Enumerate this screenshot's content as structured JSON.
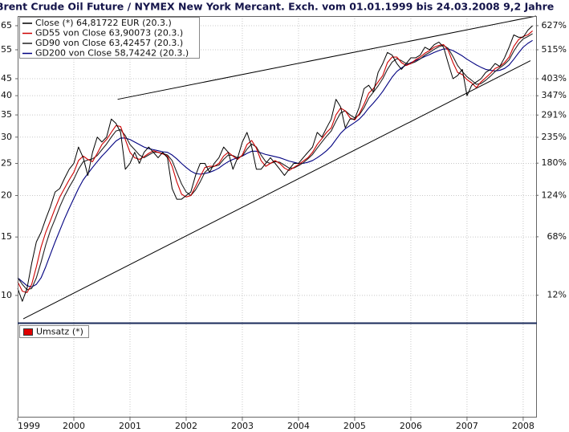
{
  "chart_data": {
    "type": "line",
    "title": "Brent Crude Oil Future / NYMEX New York Mercant. Exch. vom 01.01.1999 bis 24.03.2008 9,2 Jahre",
    "log_scale": true,
    "grid": true,
    "legend": "top-left",
    "xlim": [
      1999,
      2008.23
    ],
    "xticks": [
      1999,
      2000,
      2001,
      2002,
      2003,
      2004,
      2005,
      2006,
      2007,
      2008
    ],
    "ylim": [
      8.27,
      69.5
    ],
    "yticks": [
      65,
      55,
      45,
      40,
      35,
      30,
      25,
      20,
      15,
      10
    ],
    "y2_log": true,
    "y2lim": [
      -7.5,
      677
    ],
    "y2ticks": [
      {
        "value": 627,
        "label": "627%"
      },
      {
        "value": 515,
        "label": "515%"
      },
      {
        "value": 403,
        "label": "403%"
      },
      {
        "value": 347,
        "label": "347%"
      },
      {
        "value": 291,
        "label": "291%"
      },
      {
        "value": 235,
        "label": "235%"
      },
      {
        "value": 180,
        "label": "180%"
      },
      {
        "value": 124,
        "label": "124%"
      },
      {
        "value": 68,
        "label": "68%"
      },
      {
        "value": 12,
        "label": "12%"
      }
    ],
    "x": [
      1999.0,
      1999.083,
      1999.167,
      1999.25,
      1999.333,
      1999.417,
      1999.5,
      1999.583,
      1999.667,
      1999.75,
      1999.833,
      1999.917,
      2000.0,
      2000.083,
      2000.167,
      2000.25,
      2000.333,
      2000.417,
      2000.5,
      2000.583,
      2000.667,
      2000.75,
      2000.833,
      2000.917,
      2001.0,
      2001.083,
      2001.167,
      2001.25,
      2001.333,
      2001.417,
      2001.5,
      2001.583,
      2001.667,
      2001.75,
      2001.833,
      2001.917,
      2002.0,
      2002.083,
      2002.167,
      2002.25,
      2002.333,
      2002.417,
      2002.5,
      2002.583,
      2002.667,
      2002.75,
      2002.833,
      2002.917,
      2003.0,
      2003.083,
      2003.167,
      2003.25,
      2003.333,
      2003.417,
      2003.5,
      2003.583,
      2003.667,
      2003.75,
      2003.833,
      2003.917,
      2004.0,
      2004.083,
      2004.167,
      2004.25,
      2004.333,
      2004.417,
      2004.5,
      2004.583,
      2004.667,
      2004.75,
      2004.833,
      2004.917,
      2005.0,
      2005.083,
      2005.167,
      2005.25,
      2005.333,
      2005.417,
      2005.5,
      2005.583,
      2005.667,
      2005.75,
      2005.833,
      2005.917,
      2006.0,
      2006.083,
      2006.167,
      2006.25,
      2006.333,
      2006.417,
      2006.5,
      2006.583,
      2006.667,
      2006.75,
      2006.833,
      2006.917,
      2007.0,
      2007.083,
      2007.167,
      2007.25,
      2007.333,
      2007.417,
      2007.5,
      2007.583,
      2007.667,
      2007.75,
      2007.833,
      2007.917,
      2008.0,
      2008.083,
      2008.167
    ],
    "series": [
      {
        "name": "Close (*) 64,81722 EUR (20.3.)",
        "color": "#000000",
        "values": [
          10.5,
          9.6,
          10.5,
          12.5,
          14.5,
          15.5,
          17,
          18.5,
          20.5,
          21,
          22.5,
          24,
          25,
          28,
          26,
          23,
          27,
          30,
          29,
          30,
          34,
          33,
          31,
          24,
          25,
          27,
          25,
          27,
          28,
          27,
          26,
          27,
          26,
          21,
          19.5,
          19.5,
          20,
          20.5,
          23,
          25,
          25,
          23.5,
          25,
          26,
          28,
          27,
          24,
          26,
          29,
          31,
          28,
          24,
          24,
          25,
          26,
          25,
          24,
          23,
          24,
          25,
          25,
          26,
          27,
          28,
          31,
          30,
          32,
          34,
          39,
          37,
          32,
          34,
          34,
          37,
          42,
          43,
          41,
          47,
          50,
          54,
          53,
          50,
          48,
          50,
          52,
          52,
          53,
          56,
          55,
          57,
          58,
          56,
          50,
          45,
          46,
          48,
          40,
          43,
          44,
          45,
          47,
          48,
          50,
          49,
          52,
          56,
          61,
          60,
          60,
          63,
          65
        ]
      },
      {
        "name": "GD55 von Close 63,90073 (20.3.)",
        "color": "#cc0000",
        "values": [
          11,
          10.3,
          10.2,
          10.8,
          12.2,
          14,
          15.5,
          16.8,
          18.3,
          19.8,
          21,
          22.3,
          23.5,
          25.5,
          26.3,
          25.7,
          25.3,
          26.8,
          28.5,
          29.5,
          31,
          32.5,
          32.3,
          29.5,
          27,
          26,
          25.7,
          26.2,
          26.8,
          27.3,
          27,
          26.7,
          26.3,
          24.5,
          22,
          20.2,
          19.8,
          20,
          21.3,
          22.8,
          24.3,
          24.5,
          24.5,
          25,
          26.3,
          27,
          26.3,
          25.7,
          26.5,
          28.5,
          29.3,
          27.8,
          25.5,
          24.5,
          25,
          25.5,
          25,
          24.2,
          23.8,
          24.3,
          24.8,
          25.4,
          26,
          27,
          28.5,
          29.7,
          31,
          32,
          35,
          36.7,
          36,
          34.3,
          33.8,
          35.3,
          37.7,
          40.7,
          42,
          44,
          46,
          50.3,
          52.3,
          52.3,
          50.3,
          49.3,
          50,
          51.3,
          52.3,
          53.7,
          54.7,
          56,
          56.7,
          57,
          54.7,
          50.3,
          47,
          46.3,
          44.7,
          43.7,
          42.3,
          44,
          45.3,
          46.7,
          48.3,
          49,
          50.3,
          52.3,
          56.3,
          59,
          60.3,
          61,
          62.7
        ]
      },
      {
        "name": "GD90 von Close 63,42457 (20.3.)",
        "color": "#222222",
        "values": [
          11.3,
          10.8,
          10.4,
          10.5,
          11.3,
          12.6,
          14.2,
          15.7,
          17,
          18.5,
          19.9,
          21.2,
          22.4,
          24,
          25.3,
          25.6,
          25.8,
          26.4,
          27.5,
          28.6,
          30,
          31.3,
          31.6,
          30.3,
          28.5,
          27.5,
          26.5,
          26,
          26.5,
          27,
          27,
          26.8,
          26.5,
          25.5,
          23.5,
          21.7,
          20.5,
          20,
          20.8,
          22,
          23.5,
          24.2,
          24.5,
          24.7,
          25.7,
          26.5,
          26.4,
          26,
          26.3,
          27.6,
          28.6,
          28,
          26.5,
          25.3,
          25,
          25.3,
          25.2,
          24.7,
          24.2,
          24.2,
          24.6,
          25.1,
          25.8,
          26.6,
          27.8,
          29,
          30.2,
          31.3,
          33.5,
          35.5,
          36,
          35,
          34.3,
          35,
          36.8,
          39.3,
          41,
          42.8,
          45,
          48,
          50.5,
          51.7,
          51,
          50,
          50,
          50.6,
          51.6,
          53,
          54,
          55.2,
          56.2,
          56.7,
          55.5,
          52.5,
          49.3,
          47.3,
          45.6,
          44.5,
          43.3,
          43.5,
          44.5,
          45.8,
          47.3,
          48.5,
          49.7,
          51.3,
          54.5,
          57.3,
          59.3,
          60.3,
          61.5
        ]
      },
      {
        "name": "GD200 von Close 58,74242 (20.3.)",
        "color": "#000080",
        "values": [
          11.3,
          11,
          10.7,
          10.6,
          10.8,
          11.3,
          12.2,
          13.3,
          14.5,
          15.7,
          17,
          18.3,
          19.6,
          21,
          22.3,
          23.3,
          24.3,
          25.3,
          26.3,
          27.2,
          28.2,
          29.2,
          29.8,
          29.8,
          29.5,
          29,
          28.5,
          28,
          27.7,
          27.5,
          27.3,
          27.1,
          27,
          26.5,
          25.8,
          25,
          24.3,
          23.7,
          23.3,
          23.2,
          23.3,
          23.5,
          23.8,
          24.2,
          24.8,
          25.3,
          25.7,
          26,
          26.3,
          26.8,
          27.2,
          27.2,
          26.9,
          26.6,
          26.4,
          26.2,
          26,
          25.7,
          25.4,
          25.2,
          25,
          25,
          25.2,
          25.5,
          26,
          26.6,
          27.3,
          28.2,
          29.5,
          30.8,
          31.8,
          32.5,
          33.2,
          34,
          35.2,
          36.7,
          38,
          39.5,
          41.2,
          43.3,
          45.5,
          47.3,
          48.5,
          49.5,
          50.3,
          51,
          51.7,
          52.5,
          53.2,
          54,
          54.7,
          55.3,
          55.3,
          54.7,
          53.7,
          52.7,
          51.5,
          50.5,
          49.5,
          48.7,
          48,
          47.7,
          47.5,
          47.7,
          48.3,
          49.5,
          51.5,
          53.8,
          56,
          57.5,
          58.7
        ]
      }
    ],
    "trend_lines": [
      {
        "color": "#000000",
        "x": [
          2000.78,
          2008.23
        ],
        "values": [
          39,
          69.5
        ]
      },
      {
        "color": "#000000",
        "x": [
          1999.1,
          2008.13
        ],
        "values": [
          8.5,
          51
        ]
      }
    ],
    "lower_panel_legend": {
      "name": "Umsatz (*)",
      "color": "#e00000"
    }
  }
}
